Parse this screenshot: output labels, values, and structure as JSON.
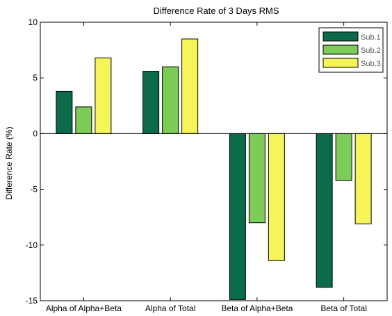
{
  "chart_data": {
    "type": "bar",
    "title": "Difference Rate of 3 Days RMS",
    "xlabel": "",
    "ylabel": "Difference Rate (%)",
    "categories": [
      "Alpha of Alpha+Beta",
      "Alpha of Total",
      "Beta of Alpha+Beta",
      "Beta of Total"
    ],
    "series": [
      {
        "name": "Sub.1",
        "color": "#0b6b48",
        "values": [
          3.8,
          5.6,
          -14.9,
          -13.8
        ]
      },
      {
        "name": "Sub.2",
        "color": "#7ccc57",
        "values": [
          2.4,
          6.0,
          -8.0,
          -4.2
        ]
      },
      {
        "name": "Sub.3",
        "color": "#f5f55a",
        "values": [
          6.8,
          8.5,
          -11.4,
          -8.1
        ]
      }
    ],
    "ylim": [
      -15,
      10
    ],
    "yticks": [
      "10",
      "5",
      "0",
      "-5",
      "-10",
      "-15"
    ],
    "grid": false,
    "legend_position": "top-right"
  }
}
